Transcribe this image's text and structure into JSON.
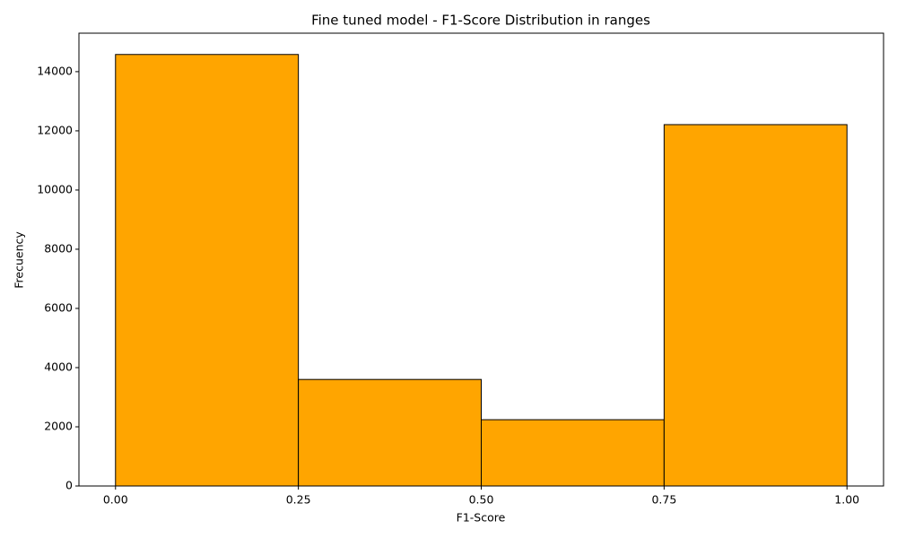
{
  "chart_data": {
    "type": "histogram",
    "title": "Fine tuned model - F1-Score Distribution in ranges",
    "xlabel": "F1-Score",
    "ylabel": "Frecuency",
    "bins": [
      0,
      0.25,
      0.5,
      0.75,
      1
    ],
    "counts": [
      14580,
      3600,
      2240,
      12210
    ],
    "color": "#ffa500",
    "edgecolor": "#000000",
    "xlim": [
      -0.05,
      1.05
    ],
    "xticks": [
      {
        "value": 0,
        "label": "0.00"
      },
      {
        "value": 0.25,
        "label": "0.25"
      },
      {
        "value": 0.5,
        "label": "0.50"
      },
      {
        "value": 0.75,
        "label": "0.75"
      },
      {
        "value": 1,
        "label": "1.00"
      }
    ],
    "ylim": [
      0,
      15300
    ],
    "yticks": [
      0,
      2000,
      4000,
      6000,
      8000,
      10000,
      12000,
      14000
    ]
  }
}
